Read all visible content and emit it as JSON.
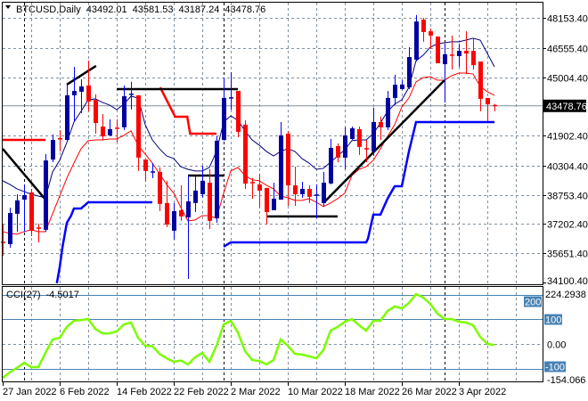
{
  "header": {
    "symbol": "BTCUSD,Daily",
    "open": "43492.01",
    "high": "43581.53",
    "low": "43187.24",
    "close": "43478.76"
  },
  "price_axis": {
    "ticks": [
      "48153.40",
      "46555.40",
      "45004.40",
      "41902.40",
      "40304.40",
      "38753.40",
      "37202.40",
      "35651.40",
      "34100.40"
    ],
    "current_price_label": "43478.76"
  },
  "cci": {
    "label": "CCI(27)",
    "value": "-4.5017",
    "max_label": "224.2938",
    "min_label": "-154.066",
    "level_labels": [
      "200",
      "100",
      "0.00",
      "-100"
    ]
  },
  "colors": {
    "bull_candle": "#0000a0",
    "bull_wick": "#0000ff",
    "bear_candle": "#ff0000",
    "fast_ma": "#000080",
    "slow_ma": "#ff0000",
    "support_step": "#0000ff",
    "resistance_step": "#ff0000",
    "trendlines": "#000000",
    "cci_line": "#7cfc00",
    "cci_levels": "#4682b4",
    "grid": "#8090a0"
  },
  "chart_data": {
    "type": "candlestick",
    "price_range": [
      34100.4,
      48153.4
    ],
    "grid": true,
    "x_tick_labels": [
      {
        "bar": 0,
        "label": "27 Jan 2022"
      },
      {
        "bar": 8,
        "label": "6 Feb 2022"
      },
      {
        "bar": 16,
        "label": "14 Feb 2022"
      },
      {
        "bar": 24,
        "label": "22 Feb 2022"
      },
      {
        "bar": 32,
        "label": "2 Mar 2022"
      },
      {
        "bar": 40,
        "label": "10 Mar 2022"
      },
      {
        "bar": 48,
        "label": "18 Mar 2022"
      },
      {
        "bar": 56,
        "label": "26 Mar 2022"
      },
      {
        "bar": 64,
        "label": "3 Apr 2022"
      }
    ],
    "period_separator_bars": [
      3,
      31,
      62
    ],
    "ohlc": [
      [
        36230,
        37180,
        35520,
        36190
      ],
      [
        36140,
        38070,
        35950,
        37790
      ],
      [
        37750,
        38790,
        36800,
        38460
      ],
      [
        38500,
        39310,
        36800,
        38740
      ],
      [
        38880,
        39070,
        36560,
        36850
      ],
      [
        36990,
        37230,
        36230,
        36940
      ],
      [
        36900,
        40920,
        36800,
        40580
      ],
      [
        40630,
        41960,
        40490,
        41670
      ],
      [
        41730,
        42190,
        41060,
        41680
      ],
      [
        41670,
        44610,
        41630,
        44040
      ],
      [
        44040,
        45550,
        42670,
        44270
      ],
      [
        44230,
        44890,
        43090,
        44510
      ],
      [
        44560,
        45880,
        43190,
        43710
      ],
      [
        43800,
        44090,
        42000,
        42570
      ],
      [
        42380,
        43050,
        41670,
        41860
      ],
      [
        41910,
        42760,
        41860,
        42240
      ],
      [
        42290,
        42760,
        41530,
        42260
      ],
      [
        42340,
        44560,
        42190,
        43990
      ],
      [
        44040,
        44750,
        43280,
        44090
      ],
      [
        44040,
        44040,
        40020,
        40730
      ],
      [
        40630,
        40630,
        39450,
        40020
      ],
      [
        39920,
        40440,
        39640,
        39970
      ],
      [
        39970,
        40210,
        37890,
        38270
      ],
      [
        38320,
        39500,
        37040,
        37180
      ],
      [
        36850,
        38320,
        36380,
        37890
      ],
      [
        37940,
        39260,
        37370,
        37610
      ],
      [
        37560,
        39780,
        34290,
        38410
      ],
      [
        38320,
        39730,
        37840,
        38980
      ],
      [
        38790,
        40300,
        38600,
        39500
      ],
      [
        39400,
        40110,
        36940,
        37370
      ],
      [
        37510,
        41860,
        37270,
        41630
      ],
      [
        41670,
        44990,
        41630,
        43900
      ],
      [
        43850,
        45270,
        43280,
        43900
      ],
      [
        44270,
        44270,
        41820,
        42100
      ],
      [
        42480,
        42710,
        39070,
        39350
      ],
      [
        39400,
        39640,
        38550,
        39350
      ],
      [
        39310,
        39880,
        38080,
        38980
      ],
      [
        39120,
        39120,
        37180,
        37840
      ],
      [
        37940,
        39400,
        37940,
        38550
      ],
      [
        38500,
        42620,
        38500,
        41910
      ],
      [
        42000,
        42150,
        38170,
        39260
      ],
      [
        39260,
        40250,
        38170,
        38790
      ],
      [
        38790,
        39450,
        38600,
        39070
      ],
      [
        39070,
        39260,
        38320,
        38650
      ],
      [
        38690,
        39310,
        37510,
        38740
      ],
      [
        38320,
        39970,
        38130,
        39400
      ],
      [
        39360,
        41720,
        39310,
        41250
      ],
      [
        41340,
        41480,
        40490,
        40730
      ],
      [
        40730,
        42340,
        40110,
        41910
      ],
      [
        41720,
        42380,
        41670,
        42290
      ],
      [
        42240,
        42380,
        40870,
        41300
      ],
      [
        41200,
        41670,
        40490,
        41160
      ],
      [
        41060,
        43380,
        40820,
        42620
      ],
      [
        42620,
        42900,
        41670,
        42340
      ],
      [
        42340,
        44270,
        42190,
        43900
      ],
      [
        43900,
        45130,
        43520,
        44600
      ],
      [
        44370,
        44840,
        44320,
        44610
      ],
      [
        44460,
        46590,
        44370,
        46070
      ],
      [
        45930,
        48300,
        45840,
        47960
      ],
      [
        48060,
        48150,
        46880,
        47400
      ],
      [
        47440,
        47590,
        46500,
        47210
      ],
      [
        47160,
        47160,
        45740,
        45740
      ],
      [
        45690,
        46780,
        43660,
        46220
      ],
      [
        46170,
        47210,
        45410,
        46120
      ],
      [
        46120,
        46780,
        45550,
        46400
      ],
      [
        46400,
        47440,
        45170,
        46260
      ],
      [
        46400,
        47070,
        45410,
        45640
      ],
      [
        45830,
        45830,
        43190,
        43850
      ],
      [
        43900,
        43900,
        42670,
        43560
      ],
      [
        43492.01,
        43581.53,
        43187.24,
        43478.76
      ]
    ],
    "fast_ma": [
      39500,
      39310,
      39070,
      38930,
      38790,
      38690,
      38600,
      39970,
      40590,
      41530,
      42620,
      43190,
      43800,
      43850,
      43660,
      43520,
      43280,
      43570,
      43990,
      43900,
      42480,
      41670,
      41200,
      40820,
      40680,
      40250,
      40110,
      40020,
      40020,
      40210,
      41060,
      42620,
      42950,
      42710,
      42150,
      41670,
      41390,
      41060,
      40820,
      41060,
      41200,
      41060,
      40680,
      40440,
      40110,
      40160,
      40490,
      40820,
      41150,
      41630,
      41670,
      41670,
      42000,
      42570,
      43190,
      43570,
      43800,
      44460,
      45880,
      46170,
      46590,
      46780,
      46830,
      46880,
      46880,
      46970,
      47070,
      46970,
      46260,
      45550
    ],
    "slow_ma": [
      36800,
      36710,
      36660,
      36800,
      36900,
      36800,
      36800,
      37750,
      38690,
      39640,
      40440,
      41200,
      41630,
      41670,
      41670,
      41720,
      41720,
      41910,
      42150,
      41390,
      40920,
      40440,
      39880,
      39310,
      38840,
      38080,
      37370,
      37420,
      37650,
      37650,
      37510,
      38840,
      40020,
      40210,
      39780,
      39550,
      39500,
      39260,
      39070,
      38690,
      38600,
      38460,
      38460,
      38550,
      38360,
      38130,
      38320,
      38550,
      38840,
      39780,
      40110,
      40250,
      40590,
      41200,
      41860,
      42480,
      43420,
      43900,
      44750,
      44980,
      45030,
      44840,
      44840,
      45080,
      45220,
      45220,
      45170,
      44510,
      44230,
      44040
    ],
    "resistance_steps": [
      [
        [
          0,
          41670
        ],
        [
          6,
          41670
        ]
      ],
      [
        [
          22.1,
          44460
        ],
        [
          24.2,
          42900
        ],
        [
          25.9,
          42900
        ],
        [
          26.3,
          42000
        ],
        [
          30,
          42000
        ]
      ]
    ],
    "support_steps": [
      [
        [
          7.6,
          34060
        ],
        [
          8,
          34910
        ],
        [
          8.4,
          36000
        ],
        [
          9,
          37270
        ],
        [
          9.6,
          37650
        ],
        [
          10,
          38030
        ],
        [
          11,
          38030
        ],
        [
          12,
          38360
        ],
        [
          21,
          38360
        ]
      ],
      [
        [
          31,
          36000
        ],
        [
          32,
          36230
        ],
        [
          51,
          36230
        ],
        [
          51.25,
          36420
        ],
        [
          52,
          37700
        ],
        [
          53,
          37700
        ],
        [
          54,
          38550
        ],
        [
          55,
          39210
        ],
        [
          56,
          39210
        ],
        [
          57,
          41060
        ],
        [
          58,
          42620
        ],
        [
          69,
          42620
        ]
      ]
    ],
    "trendlines": [
      [
        [
          0,
          41200
        ],
        [
          5.9,
          38550
        ]
      ],
      [
        [
          9,
          44610
        ],
        [
          13.1,
          45600
        ]
      ],
      [
        [
          16,
          44370
        ],
        [
          33,
          44370
        ]
      ],
      [
        [
          26,
          39780
        ],
        [
          31,
          39780
        ]
      ],
      [
        [
          37,
          37610
        ],
        [
          47,
          37610
        ]
      ],
      [
        [
          45.1,
          38360
        ],
        [
          62,
          44840
        ]
      ]
    ],
    "cci_range": [
      -154.066,
      224.2938
    ],
    "cci_levels": [
      200,
      100,
      0,
      -100
    ],
    "cci_values": [
      -137,
      -115,
      -97,
      -76,
      -94,
      -94,
      -36,
      18,
      25,
      69,
      94,
      97,
      101,
      61,
      43,
      43,
      51,
      79,
      87,
      25,
      -7,
      -9,
      -40,
      -58,
      -72,
      -67,
      -83,
      -54,
      -36,
      -72,
      -7,
      79,
      94,
      47,
      -29,
      -65,
      -69,
      -83,
      -65,
      18,
      -7,
      -40,
      -43,
      -50,
      -58,
      -25,
      54,
      69,
      90,
      101,
      76,
      54,
      94,
      94,
      134,
      152,
      144,
      166,
      202,
      188,
      162,
      123,
      101,
      101,
      90,
      87,
      76,
      29,
      0,
      -4.5017
    ]
  }
}
